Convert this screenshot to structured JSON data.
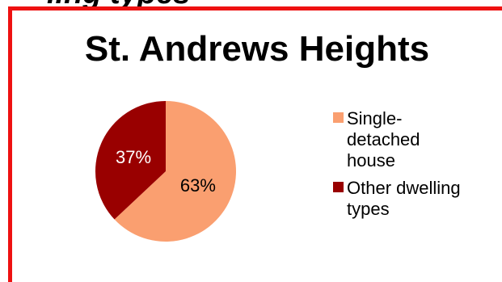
{
  "page": {
    "clipped_heading": "ling types",
    "frame_color": "#ee1111"
  },
  "chart_data": {
    "type": "pie",
    "title": "St. Andrews Heights",
    "categories": [
      "Single-detached house",
      "Other dwelling types"
    ],
    "values": [
      63,
      37
    ],
    "data_labels": [
      "63%",
      "37%"
    ],
    "colors": [
      "#fa9f70",
      "#990000"
    ],
    "label_colors": [
      "#000000",
      "#ffffff"
    ],
    "legend": {
      "position": "right",
      "entries": [
        {
          "label": "Single-detached house",
          "color": "#fa9f70"
        },
        {
          "label": "Other dwelling types",
          "color": "#990000"
        }
      ]
    }
  }
}
